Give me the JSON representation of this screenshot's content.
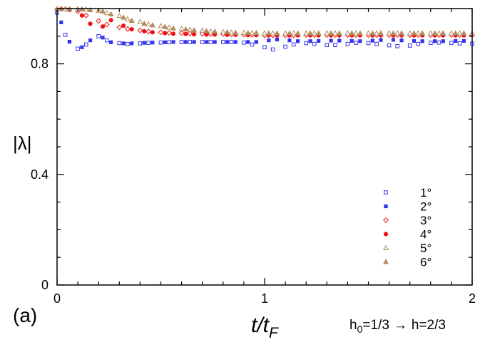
{
  "chart_data": {
    "type": "scatter",
    "title": "",
    "panel_label": "(a)",
    "xlabel": {
      "main": "t/t",
      "sub": "F"
    },
    "ylabel": "|λ|",
    "xlim": [
      0,
      2
    ],
    "ylim": [
      0,
      1
    ],
    "x_ticks": [
      0,
      1,
      2
    ],
    "y_ticks": [
      0,
      0.4,
      0.8
    ],
    "x_tick_labels": [
      "0",
      "1",
      "2"
    ],
    "y_tick_labels": [
      "0",
      "0.4",
      "0.8"
    ],
    "condition": {
      "h0_base": "h",
      "h0_sub": "0",
      "h0_value": "=1/3",
      "arrow": "→",
      "h_final": "h=2/3"
    },
    "legend_position": "bottom-right",
    "series": [
      {
        "name": "1°",
        "marker": "square-open",
        "color": "#3333ee",
        "x": [
          0.0,
          0.04,
          0.1,
          0.14,
          0.2,
          0.24,
          0.3,
          0.34,
          0.4,
          0.44,
          0.5,
          0.54,
          0.6,
          0.64,
          0.7,
          0.74,
          0.8,
          0.84,
          0.9,
          0.94,
          1.0,
          1.04,
          1.1,
          1.14,
          1.2,
          1.24,
          1.3,
          1.34,
          1.4,
          1.44,
          1.5,
          1.54,
          1.6,
          1.64,
          1.7,
          1.74,
          1.8,
          1.84,
          1.9,
          1.94,
          2.0
        ],
        "y": [
          0.985,
          0.905,
          0.855,
          0.87,
          0.9,
          0.885,
          0.875,
          0.872,
          0.874,
          0.876,
          0.877,
          0.878,
          0.879,
          0.879,
          0.879,
          0.879,
          0.879,
          0.879,
          0.877,
          0.87,
          0.86,
          0.852,
          0.862,
          0.87,
          0.875,
          0.872,
          0.868,
          0.868,
          0.872,
          0.876,
          0.875,
          0.872,
          0.867,
          0.864,
          0.866,
          0.872,
          0.876,
          0.877,
          0.876,
          0.874,
          0.873
        ]
      },
      {
        "name": "2°",
        "marker": "square-filled",
        "color": "#3333ee",
        "x": [
          0.02,
          0.06,
          0.12,
          0.16,
          0.22,
          0.26,
          0.32,
          0.36,
          0.42,
          0.46,
          0.52,
          0.56,
          0.62,
          0.66,
          0.72,
          0.76,
          0.82,
          0.86,
          0.92,
          0.96,
          1.02,
          1.06,
          1.12,
          1.16,
          1.22,
          1.26,
          1.32,
          1.36,
          1.42,
          1.46,
          1.52,
          1.56,
          1.62,
          1.66,
          1.72,
          1.76,
          1.82,
          1.86,
          1.92,
          1.96
        ],
        "y": [
          0.95,
          0.88,
          0.86,
          0.885,
          0.895,
          0.878,
          0.874,
          0.874,
          0.876,
          0.877,
          0.878,
          0.879,
          0.879,
          0.879,
          0.879,
          0.879,
          0.879,
          0.879,
          0.879,
          0.879,
          0.885,
          0.888,
          0.885,
          0.882,
          0.882,
          0.883,
          0.884,
          0.884,
          0.883,
          0.882,
          0.884,
          0.886,
          0.887,
          0.885,
          0.883,
          0.882,
          0.882,
          0.882,
          0.883,
          0.883
        ]
      },
      {
        "name": "3°",
        "marker": "diamond-open",
        "color": "#ee1111",
        "x": [
          0.0,
          0.04,
          0.1,
          0.14,
          0.2,
          0.24,
          0.3,
          0.34,
          0.4,
          0.44,
          0.5,
          0.54,
          0.6,
          0.64,
          0.7,
          0.74,
          0.8,
          0.84,
          0.9,
          0.94,
          1.0,
          1.04,
          1.1,
          1.14,
          1.2,
          1.24,
          1.3,
          1.34,
          1.4,
          1.44,
          1.5,
          1.54,
          1.6,
          1.64,
          1.7,
          1.74,
          1.8,
          1.84,
          1.9,
          1.94,
          2.0
        ],
        "y": [
          0.998,
          0.998,
          0.99,
          0.975,
          0.955,
          0.942,
          0.932,
          0.926,
          0.921,
          0.917,
          0.914,
          0.912,
          0.911,
          0.91,
          0.909,
          0.908,
          0.908,
          0.907,
          0.906,
          0.905,
          0.903,
          0.903,
          0.903,
          0.903,
          0.904,
          0.904,
          0.904,
          0.904,
          0.904,
          0.904,
          0.904,
          0.904,
          0.904,
          0.904,
          0.904,
          0.904,
          0.904,
          0.904,
          0.904,
          0.904,
          0.904
        ]
      },
      {
        "name": "4°",
        "marker": "circle-filled",
        "color": "#ee1111",
        "x": [
          0.02,
          0.06,
          0.12,
          0.16,
          0.22,
          0.26,
          0.32,
          0.36,
          0.42,
          0.46,
          0.52,
          0.56,
          0.62,
          0.66,
          0.72,
          0.76,
          0.82,
          0.86,
          0.92,
          0.96,
          1.02,
          1.06,
          1.12,
          1.16,
          1.22,
          1.26,
          1.32,
          1.36,
          1.42,
          1.46,
          1.52,
          1.56,
          1.62,
          1.66,
          1.72,
          1.76,
          1.82,
          1.86,
          1.92,
          1.96
        ],
        "y": [
          0.998,
          0.995,
          0.975,
          0.945,
          0.935,
          0.958,
          0.938,
          0.925,
          0.918,
          0.914,
          0.911,
          0.909,
          0.908,
          0.907,
          0.906,
          0.906,
          0.905,
          0.905,
          0.904,
          0.904,
          0.903,
          0.903,
          0.903,
          0.903,
          0.903,
          0.903,
          0.903,
          0.903,
          0.903,
          0.903,
          0.903,
          0.903,
          0.903,
          0.903,
          0.903,
          0.903,
          0.903,
          0.903,
          0.903,
          0.903
        ]
      },
      {
        "name": "5°",
        "marker": "triangle-open",
        "color": "#b38a5e",
        "x": [
          0.0,
          0.04,
          0.1,
          0.14,
          0.2,
          0.24,
          0.3,
          0.34,
          0.4,
          0.44,
          0.5,
          0.54,
          0.6,
          0.64,
          0.7,
          0.74,
          0.8,
          0.84,
          0.9,
          0.94,
          1.0,
          1.04,
          1.1,
          1.14,
          1.2,
          1.24,
          1.3,
          1.34,
          1.4,
          1.44,
          1.5,
          1.54,
          1.6,
          1.64,
          1.7,
          1.74,
          1.8,
          1.84,
          1.9,
          1.94,
          2.0
        ],
        "y": [
          1.0,
          0.999,
          0.999,
          0.997,
          0.993,
          0.984,
          0.974,
          0.962,
          0.952,
          0.944,
          0.937,
          0.932,
          0.927,
          0.924,
          0.921,
          0.918,
          0.916,
          0.914,
          0.913,
          0.912,
          0.911,
          0.911,
          0.911,
          0.911,
          0.911,
          0.911,
          0.911,
          0.911,
          0.911,
          0.911,
          0.911,
          0.911,
          0.911,
          0.911,
          0.911,
          0.911,
          0.911,
          0.911,
          0.911,
          0.911,
          0.911
        ]
      },
      {
        "name": "6°",
        "marker": "triangle-filled",
        "color": "#b38a5e",
        "x": [
          0.02,
          0.06,
          0.12,
          0.16,
          0.22,
          0.26,
          0.32,
          0.36,
          0.42,
          0.46,
          0.52,
          0.56,
          0.62,
          0.66,
          0.72,
          0.76,
          0.82,
          0.86,
          0.92,
          0.96,
          1.02,
          1.06,
          1.12,
          1.16,
          1.22,
          1.26,
          1.32,
          1.36,
          1.42,
          1.46,
          1.52,
          1.56,
          1.62,
          1.66,
          1.72,
          1.76,
          1.82,
          1.86,
          1.92,
          1.96
        ],
        "y": [
          1.0,
          0.999,
          0.998,
          0.995,
          0.99,
          0.98,
          0.968,
          0.956,
          0.946,
          0.94,
          0.934,
          0.929,
          0.925,
          0.922,
          0.919,
          0.917,
          0.915,
          0.913,
          0.912,
          0.912,
          0.911,
          0.911,
          0.911,
          0.911,
          0.911,
          0.911,
          0.911,
          0.911,
          0.911,
          0.911,
          0.911,
          0.911,
          0.911,
          0.911,
          0.911,
          0.911,
          0.911,
          0.911,
          0.911,
          0.911
        ]
      }
    ]
  }
}
